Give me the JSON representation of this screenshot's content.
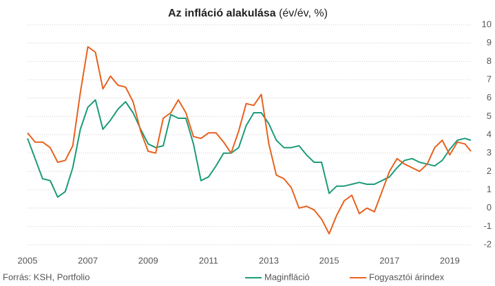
{
  "chart_data": {
    "type": "line",
    "title": "Az infláció alakulása",
    "subtitle": "(év/év, %)",
    "source": "Forrás: KSH, Portfolio",
    "x": [
      2005,
      2005.25,
      2005.5,
      2005.75,
      2006,
      2006.25,
      2006.5,
      2006.75,
      2007,
      2007.25,
      2007.5,
      2007.75,
      2008,
      2008.25,
      2008.5,
      2008.75,
      2009,
      2009.25,
      2009.5,
      2009.75,
      2010,
      2010.25,
      2010.5,
      2010.75,
      2011,
      2011.25,
      2011.5,
      2011.75,
      2012,
      2012.25,
      2012.5,
      2012.75,
      2013,
      2013.25,
      2013.5,
      2013.75,
      2014,
      2014.25,
      2014.5,
      2014.75,
      2015,
      2015.25,
      2015.5,
      2015.75,
      2016,
      2016.25,
      2016.5,
      2016.75,
      2017,
      2017.25,
      2017.5,
      2017.75,
      2018,
      2018.25,
      2018.5,
      2018.75,
      2019,
      2019.25,
      2019.5,
      2019.7
    ],
    "series": [
      {
        "name": "Maginfláció",
        "color": "#1a9a78",
        "values": [
          3.8,
          2.7,
          1.6,
          1.5,
          0.6,
          0.9,
          2.2,
          4.3,
          5.5,
          5.9,
          4.3,
          4.8,
          5.4,
          5.8,
          5.2,
          4.3,
          3.5,
          3.3,
          3.4,
          5.1,
          4.9,
          4.9,
          3.5,
          1.5,
          1.7,
          2.3,
          3.0,
          3.0,
          3.3,
          4.5,
          5.2,
          5.2,
          4.6,
          3.7,
          3.3,
          3.3,
          3.4,
          2.9,
          2.5,
          2.5,
          0.8,
          1.2,
          1.2,
          1.3,
          1.4,
          1.3,
          1.3,
          1.5,
          1.7,
          2.2,
          2.6,
          2.7,
          2.5,
          2.4,
          2.3,
          2.6,
          3.2,
          3.7,
          3.8,
          3.7
        ]
      },
      {
        "name": "Fogyasztói árindex",
        "color": "#e8601c",
        "values": [
          4.1,
          3.6,
          3.6,
          3.3,
          2.5,
          2.6,
          3.4,
          6.3,
          8.8,
          8.5,
          6.5,
          7.2,
          6.7,
          6.6,
          5.8,
          4.2,
          3.1,
          3.0,
          4.9,
          5.2,
          5.9,
          5.2,
          3.9,
          3.8,
          4.1,
          4.1,
          3.6,
          3.0,
          4.2,
          5.7,
          5.6,
          6.2,
          3.5,
          1.8,
          1.6,
          1.1,
          0.0,
          0.1,
          -0.1,
          -0.6,
          -1.4,
          -0.4,
          0.4,
          0.7,
          -0.3,
          0.0,
          -0.2,
          0.9,
          2.0,
          2.7,
          2.4,
          2.2,
          2.0,
          2.4,
          3.3,
          3.7,
          2.9,
          3.6,
          3.5,
          3.1
        ]
      }
    ],
    "xlim": [
      2005,
      2019.7
    ],
    "xticks": [
      2005,
      2007,
      2009,
      2011,
      2013,
      2015,
      2017,
      2019
    ],
    "ylim": [
      -2,
      10
    ],
    "yticks": [
      -2,
      -1,
      0,
      1,
      2,
      3,
      4,
      5,
      6,
      7,
      8,
      9,
      10
    ],
    "grid": true,
    "legend": "bottom"
  }
}
